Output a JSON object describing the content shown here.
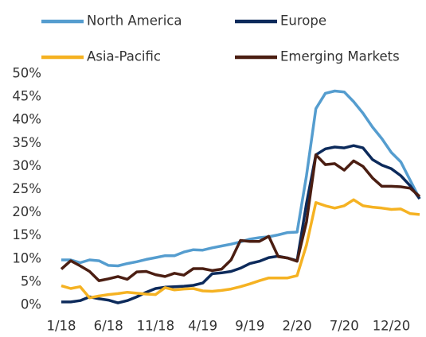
{
  "chart_data": {
    "type": "line",
    "categories": [
      "1/18",
      null,
      null,
      null,
      null,
      "6/18",
      null,
      null,
      null,
      null,
      "11/18",
      null,
      null,
      null,
      null,
      "4/19",
      null,
      null,
      null,
      null,
      "9/19",
      null,
      null,
      null,
      null,
      "2/20",
      null,
      null,
      null,
      null,
      "7/20",
      null,
      null,
      null,
      null,
      "12/20",
      null,
      null,
      null
    ],
    "series": [
      {
        "name": "North America",
        "color": "#559dcf",
        "values": [
          9.8,
          9.8,
          9.2,
          9.8,
          9.6,
          8.6,
          8.5,
          9.0,
          9.4,
          9.9,
          10.3,
          10.7,
          10.7,
          11.5,
          12.0,
          11.9,
          12.4,
          12.8,
          13.2,
          13.7,
          14.3,
          14.6,
          14.8,
          15.2,
          15.7,
          15.8,
          28,
          42.5,
          45.8,
          46.3,
          46.1,
          44,
          41.5,
          38.5,
          36,
          33,
          31,
          27,
          23
        ]
      },
      {
        "name": "Europe",
        "color": "#0c2a5b",
        "values": [
          0.7,
          0.7,
          1.0,
          1.8,
          1.4,
          1.1,
          0.5,
          1.0,
          1.8,
          2.8,
          3.6,
          3.9,
          4.0,
          4.1,
          4.3,
          4.8,
          6.8,
          7.0,
          7.3,
          8.0,
          9.0,
          9.5,
          10.3,
          10.6,
          10.2,
          9.6,
          22,
          32.5,
          33.8,
          34.2,
          34.0,
          34.5,
          34.0,
          31.5,
          30.3,
          29.5,
          28,
          25.8,
          23
        ]
      },
      {
        "name": "Asia-Pacific",
        "color": "#f5b222",
        "values": [
          4.2,
          3.6,
          4.0,
          1.6,
          2.0,
          2.3,
          2.5,
          2.8,
          2.6,
          2.4,
          2.3,
          3.8,
          3.3,
          3.5,
          3.6,
          3.1,
          3.0,
          3.2,
          3.5,
          4.0,
          4.6,
          5.3,
          5.9,
          5.9,
          5.9,
          6.4,
          13,
          22.2,
          21.5,
          21.0,
          21.5,
          22.8,
          21.5,
          21.2,
          21.0,
          20.7,
          20.8,
          19.8,
          19.6
        ]
      },
      {
        "name": "Emerging Markets",
        "color": "#4b1e12",
        "values": [
          7.8,
          9.6,
          8.5,
          7.3,
          5.3,
          5.7,
          6.2,
          5.6,
          7.2,
          7.3,
          6.6,
          6.2,
          6.9,
          6.5,
          7.9,
          7.9,
          7.5,
          7.8,
          9.8,
          14.0,
          13.8,
          13.8,
          14.9,
          10.5,
          10.2,
          9.5,
          18,
          32.5,
          30.4,
          30.6,
          29.2,
          31.2,
          30.0,
          27.5,
          25.7,
          25.7,
          25.6,
          25.3,
          23.5
        ]
      }
    ],
    "ylim": [
      0,
      50
    ],
    "yticks": [
      {
        "value": 0,
        "label": "0%"
      },
      {
        "value": 5,
        "label": "5%"
      },
      {
        "value": 10,
        "label": "10%"
      },
      {
        "value": 15,
        "label": "15%"
      },
      {
        "value": 20,
        "label": "20%"
      },
      {
        "value": 25,
        "label": "25%"
      },
      {
        "value": 30,
        "label": "30%"
      },
      {
        "value": 35,
        "label": "35%"
      },
      {
        "value": 40,
        "label": "40%"
      },
      {
        "value": 45,
        "label": "45%"
      },
      {
        "value": 50,
        "label": "50%"
      }
    ],
    "grid": false
  }
}
